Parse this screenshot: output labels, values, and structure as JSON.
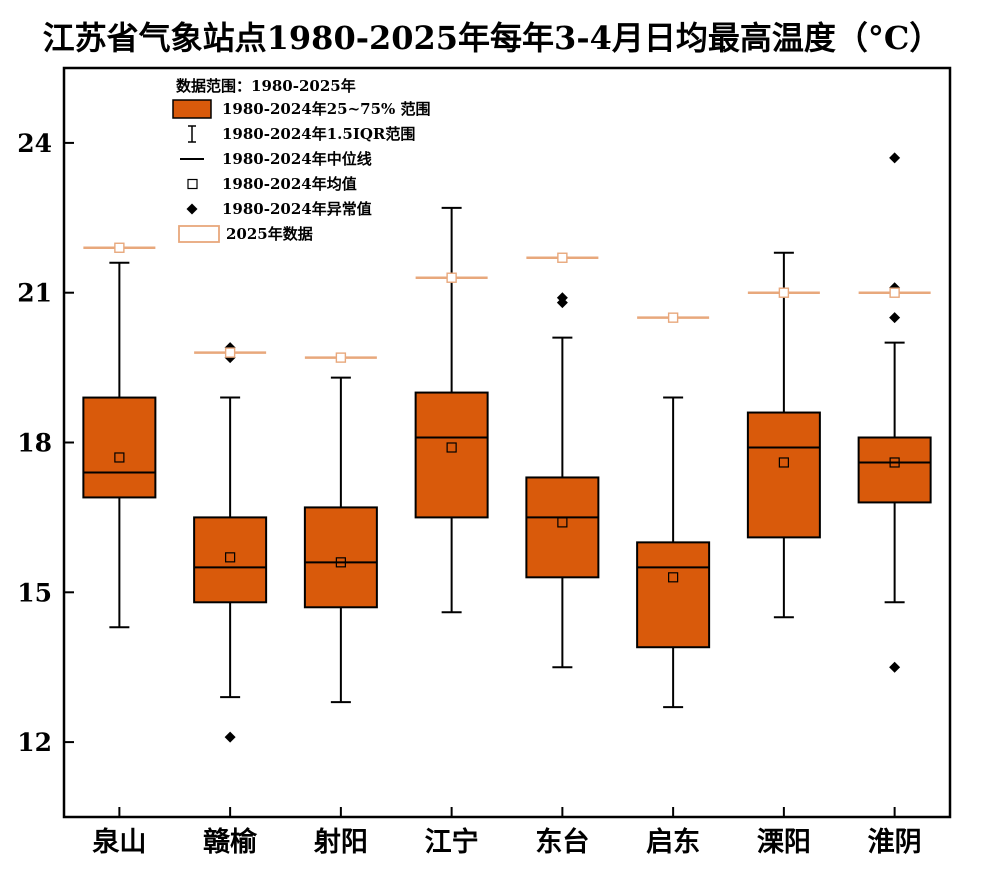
{
  "chart_data": {
    "type": "box",
    "title": "江苏省气象站点1980-2025年每年3-4月日均最高温度（°C）",
    "xlabel": "",
    "ylabel": "",
    "ylim": [
      10.5,
      25.5
    ],
    "yticks": [
      12,
      15,
      18,
      21,
      24
    ],
    "grid": false,
    "legend_position": "top-left",
    "categories": [
      "泉山",
      "赣榆",
      "射阳",
      "江宁",
      "东台",
      "启东",
      "溧阳",
      "淮阴"
    ],
    "boxes": [
      {
        "category": "泉山",
        "whisker_low": 14.3,
        "q1": 16.9,
        "median": 17.4,
        "q3": 18.9,
        "whisker_high": 21.6,
        "mean": 17.7,
        "outliers": [],
        "value_2025": 21.9
      },
      {
        "category": "赣榆",
        "whisker_low": 12.9,
        "q1": 14.8,
        "median": 15.5,
        "q3": 16.5,
        "whisker_high": 18.9,
        "mean": 15.7,
        "outliers": [
          12.1,
          19.7,
          19.9
        ],
        "value_2025": 19.8
      },
      {
        "category": "射阳",
        "whisker_low": 12.8,
        "q1": 14.7,
        "median": 15.6,
        "q3": 16.7,
        "whisker_high": 19.3,
        "mean": 15.6,
        "outliers": [],
        "value_2025": 19.7
      },
      {
        "category": "江宁",
        "whisker_low": 14.6,
        "q1": 16.5,
        "median": 18.1,
        "q3": 19.0,
        "whisker_high": 22.7,
        "mean": 17.9,
        "outliers": [],
        "value_2025": 21.3
      },
      {
        "category": "东台",
        "whisker_low": 13.5,
        "q1": 15.3,
        "median": 16.5,
        "q3": 17.3,
        "whisker_high": 20.1,
        "mean": 16.4,
        "outliers": [
          20.8,
          20.9
        ],
        "value_2025": 21.7
      },
      {
        "category": "启东",
        "whisker_low": 12.7,
        "q1": 13.9,
        "median": 15.5,
        "q3": 16.0,
        "whisker_high": 18.9,
        "mean": 15.3,
        "outliers": [],
        "value_2025": 20.5
      },
      {
        "category": "溧阳",
        "whisker_low": 14.5,
        "q1": 16.1,
        "median": 17.9,
        "q3": 18.6,
        "whisker_high": 21.8,
        "mean": 17.6,
        "outliers": [],
        "value_2025": 21.0
      },
      {
        "category": "淮阴",
        "whisker_low": 14.8,
        "q1": 16.8,
        "median": 17.6,
        "q3": 18.1,
        "whisker_high": 20.0,
        "mean": 17.6,
        "outliers": [
          13.5,
          20.5,
          21.1,
          23.7
        ],
        "value_2025": 21.0
      }
    ],
    "legend": {
      "title": "数据范围：1980-2025年",
      "entries": [
        {
          "symbol": "box",
          "label": "1980-2024年25~75% 范围"
        },
        {
          "symbol": "whisker",
          "label": "1980-2024年1.5IQR范围"
        },
        {
          "symbol": "median",
          "label": "1980-2024年中位线"
        },
        {
          "symbol": "mean",
          "label": "1980-2024年均值"
        },
        {
          "symbol": "outlier",
          "label": "1980-2024年异常值"
        },
        {
          "symbol": "value2025",
          "label": "2025年数据"
        }
      ]
    },
    "colors": {
      "box_fill": "#d95a0b",
      "value_2025": "#e8a87c",
      "line": "#000000"
    }
  }
}
